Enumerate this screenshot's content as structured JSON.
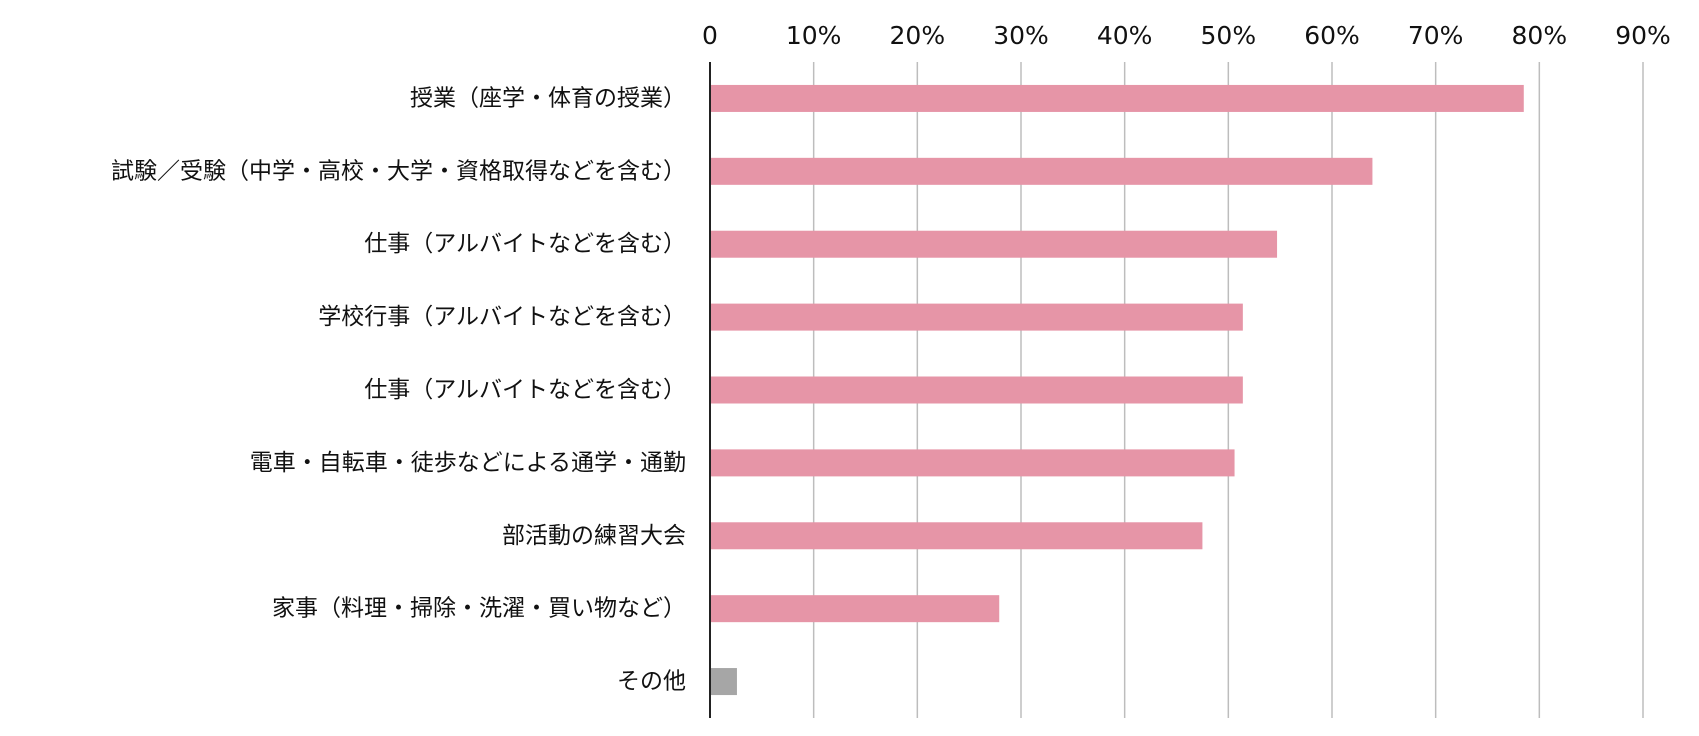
{
  "chart_data": {
    "type": "bar",
    "orientation": "horizontal",
    "categories": [
      "授業（座学・体育の授業）",
      "試験／受験（中学・高校・大学・資格取得などを含む）",
      "仕事（アルバイトなどを含む）",
      "学校行事（アルバイトなどを含む）",
      "仕事（アルバイトなどを含む）",
      "電車・自転車・徒歩などによる通学・通勤",
      "部活動の練習大会",
      "家事（料理・掃除・洗濯・買い物など）",
      "その他"
    ],
    "values": [
      78.5,
      63.9,
      54.7,
      51.4,
      51.4,
      50.6,
      47.5,
      27.9,
      2.6
    ],
    "bar_colors": [
      "#e695a7",
      "#e695a7",
      "#e695a7",
      "#e695a7",
      "#e695a7",
      "#e695a7",
      "#e695a7",
      "#e695a7",
      "#a6a6a6"
    ],
    "xlim": [
      0,
      90
    ],
    "xticks": [
      0,
      10,
      20,
      30,
      40,
      50,
      60,
      70,
      80,
      90
    ],
    "xtick_labels": [
      "0",
      "10%",
      "20%",
      "30%",
      "40%",
      "50%",
      "60%",
      "70%",
      "80%",
      "90%"
    ],
    "x_axis_position": "top",
    "grid": true,
    "legend": "none",
    "title": "",
    "xlabel": "",
    "ylabel": ""
  }
}
